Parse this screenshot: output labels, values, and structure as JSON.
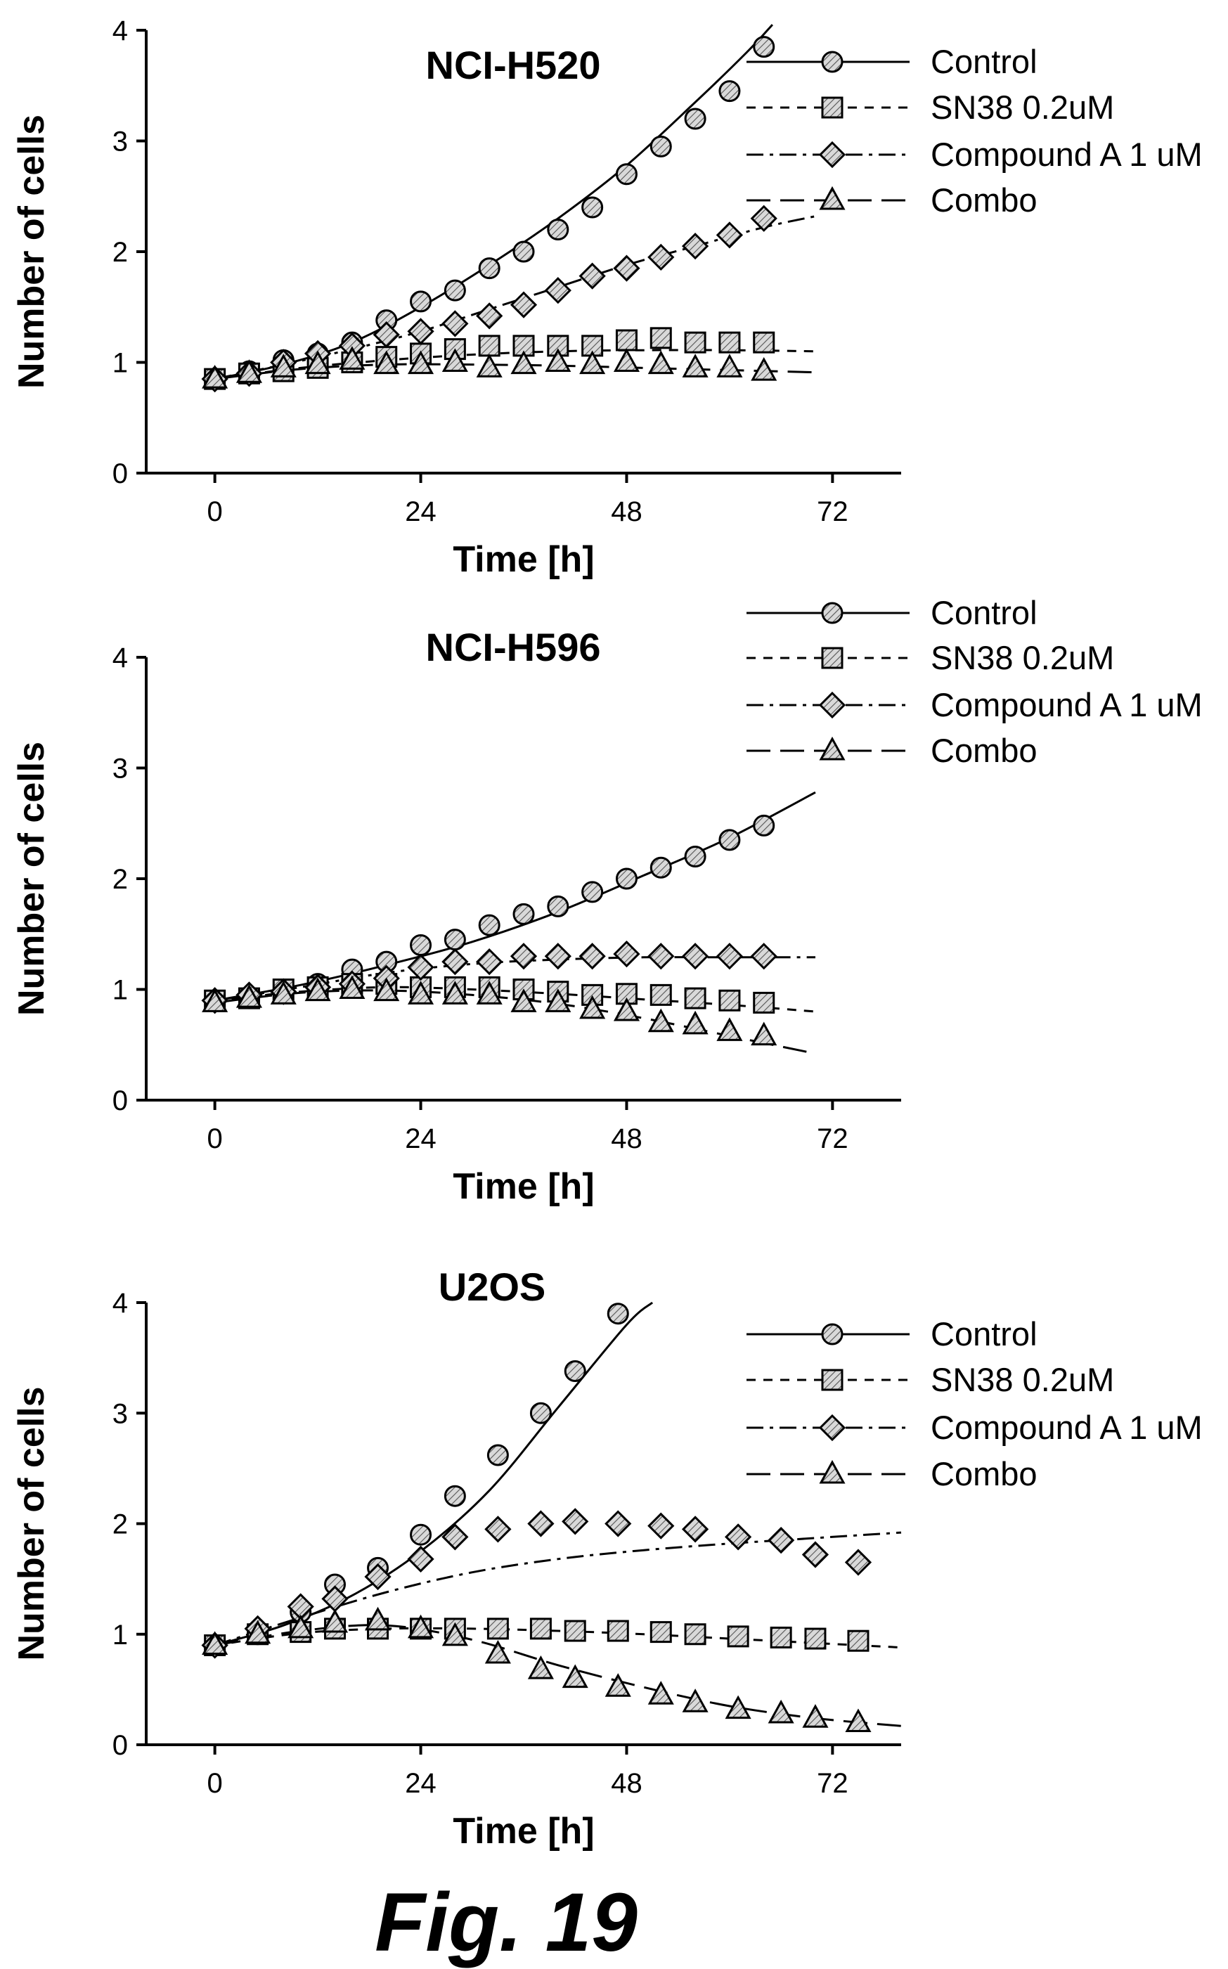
{
  "figure": {
    "caption": "Fig. 19"
  },
  "legend_entries": [
    "Control",
    "SN38 0.2uM",
    "Compound A 1 uM",
    "Combo"
  ],
  "chart_data": [
    {
      "type": "line",
      "title": "NCI-H520",
      "xlabel": "Time [h]",
      "ylabel": "Number of cells",
      "xlim": [
        -8,
        80
      ],
      "ylim": [
        0,
        4
      ],
      "xticks": [
        0,
        24,
        48,
        72
      ],
      "yticks": [
        0,
        1,
        2,
        3,
        4
      ],
      "grid": false,
      "legend": "top-right",
      "series": [
        {
          "name": "Control",
          "marker": "circle",
          "line": "solid",
          "x": [
            0,
            4,
            8,
            12,
            16,
            20,
            24,
            28,
            32,
            36,
            40,
            44,
            48,
            52,
            56,
            60,
            64
          ],
          "y": [
            0.85,
            0.92,
            1.02,
            1.08,
            1.18,
            1.38,
            1.55,
            1.65,
            1.85,
            2.0,
            2.2,
            2.4,
            2.7,
            2.95,
            3.2,
            3.45,
            3.85
          ],
          "fit_x": [
            0,
            8,
            16,
            24,
            32,
            40,
            48,
            56,
            62,
            65
          ],
          "fit_y": [
            0.85,
            0.98,
            1.18,
            1.5,
            1.88,
            2.3,
            2.78,
            3.35,
            3.8,
            4.05
          ]
        },
        {
          "name": "SN38 0.2uM",
          "marker": "square",
          "line": "dashed",
          "x": [
            0,
            4,
            8,
            12,
            16,
            20,
            24,
            28,
            32,
            36,
            40,
            44,
            48,
            52,
            56,
            60,
            64
          ],
          "y": [
            0.85,
            0.9,
            0.92,
            0.95,
            1.0,
            1.05,
            1.08,
            1.12,
            1.15,
            1.15,
            1.15,
            1.15,
            1.2,
            1.22,
            1.18,
            1.18,
            1.18
          ],
          "fit_x": [
            0,
            10,
            20,
            30,
            40,
            50,
            60,
            70
          ],
          "fit_y": [
            0.85,
            0.95,
            1.02,
            1.07,
            1.1,
            1.11,
            1.11,
            1.1
          ]
        },
        {
          "name": "Compound A 1 uM",
          "marker": "diamond",
          "line": "dashdot",
          "x": [
            0,
            4,
            8,
            12,
            16,
            20,
            24,
            28,
            32,
            36,
            40,
            44,
            48,
            52,
            56,
            60,
            64
          ],
          "y": [
            0.85,
            0.9,
            1.0,
            1.08,
            1.15,
            1.25,
            1.28,
            1.35,
            1.42,
            1.52,
            1.65,
            1.78,
            1.85,
            1.95,
            2.05,
            2.15,
            2.3
          ],
          "fit_x": [
            0,
            8,
            16,
            24,
            32,
            40,
            48,
            56,
            64,
            70
          ],
          "fit_y": [
            0.85,
            0.98,
            1.12,
            1.28,
            1.48,
            1.68,
            1.88,
            2.05,
            2.22,
            2.32
          ]
        },
        {
          "name": "Combo",
          "marker": "triangle",
          "line": "longdash",
          "x": [
            0,
            4,
            8,
            12,
            16,
            20,
            24,
            28,
            32,
            36,
            40,
            44,
            48,
            52,
            56,
            60,
            64
          ],
          "y": [
            0.85,
            0.9,
            0.95,
            0.98,
            1.02,
            0.98,
            0.98,
            1.0,
            0.95,
            0.98,
            1.0,
            0.98,
            1.0,
            0.98,
            0.95,
            0.95,
            0.92
          ],
          "fit_x": [
            0,
            10,
            20,
            30,
            40,
            50,
            60,
            70
          ],
          "fit_y": [
            0.85,
            0.94,
            0.98,
            0.98,
            0.97,
            0.95,
            0.93,
            0.91
          ]
        }
      ]
    },
    {
      "type": "line",
      "title": "NCI-H596",
      "xlabel": "Time [h]",
      "ylabel": "Number of cells",
      "xlim": [
        -8,
        80
      ],
      "ylim": [
        0,
        4
      ],
      "xticks": [
        0,
        24,
        48,
        72
      ],
      "yticks": [
        0,
        1,
        2,
        3,
        4
      ],
      "grid": false,
      "legend": "top-right",
      "series": [
        {
          "name": "Control",
          "marker": "circle",
          "line": "solid",
          "x": [
            0,
            4,
            8,
            12,
            16,
            20,
            24,
            28,
            32,
            36,
            40,
            44,
            48,
            52,
            56,
            60,
            64
          ],
          "y": [
            0.9,
            0.92,
            1.0,
            1.05,
            1.18,
            1.25,
            1.4,
            1.45,
            1.58,
            1.68,
            1.75,
            1.88,
            2.0,
            2.1,
            2.2,
            2.35,
            2.48
          ],
          "fit_x": [
            0,
            10,
            20,
            30,
            40,
            50,
            60,
            70
          ],
          "fit_y": [
            0.9,
            1.04,
            1.22,
            1.43,
            1.7,
            2.03,
            2.37,
            2.78
          ]
        },
        {
          "name": "SN38 0.2uM",
          "marker": "square",
          "line": "dashed",
          "x": [
            0,
            4,
            8,
            12,
            16,
            20,
            24,
            28,
            32,
            36,
            40,
            44,
            48,
            52,
            56,
            60,
            64
          ],
          "y": [
            0.9,
            0.92,
            1.0,
            1.02,
            1.05,
            1.05,
            1.02,
            1.02,
            1.02,
            1.0,
            0.98,
            0.95,
            0.96,
            0.95,
            0.92,
            0.9,
            0.88
          ],
          "fit_x": [
            0,
            10,
            20,
            30,
            40,
            50,
            60,
            70
          ],
          "fit_y": [
            0.9,
            0.98,
            1.02,
            1.0,
            0.96,
            0.91,
            0.86,
            0.8
          ]
        },
        {
          "name": "Compound A 1 uM",
          "marker": "diamond",
          "line": "dashdot",
          "x": [
            0,
            4,
            8,
            12,
            16,
            20,
            24,
            28,
            32,
            36,
            40,
            44,
            48,
            52,
            56,
            60,
            64
          ],
          "y": [
            0.9,
            0.95,
            0.98,
            1.02,
            1.05,
            1.1,
            1.2,
            1.25,
            1.25,
            1.3,
            1.3,
            1.3,
            1.32,
            1.3,
            1.3,
            1.3,
            1.3
          ],
          "fit_x": [
            0,
            10,
            20,
            30,
            40,
            50,
            60,
            70
          ],
          "fit_y": [
            0.9,
            1.02,
            1.15,
            1.23,
            1.27,
            1.29,
            1.29,
            1.29
          ]
        },
        {
          "name": "Combo",
          "marker": "triangle",
          "line": "longdash",
          "x": [
            0,
            4,
            8,
            12,
            16,
            20,
            24,
            28,
            32,
            36,
            40,
            44,
            48,
            52,
            56,
            60,
            64
          ],
          "y": [
            0.88,
            0.92,
            0.95,
            0.98,
            1.0,
            0.98,
            0.95,
            0.95,
            0.95,
            0.88,
            0.88,
            0.82,
            0.8,
            0.7,
            0.68,
            0.62,
            0.58
          ],
          "fit_x": [
            0,
            10,
            20,
            30,
            40,
            50,
            60,
            70
          ],
          "fit_y": [
            0.88,
            0.97,
            0.99,
            0.95,
            0.87,
            0.74,
            0.58,
            0.42
          ]
        }
      ]
    },
    {
      "type": "line",
      "title": "U2OS",
      "xlabel": "Time [h]",
      "ylabel": "Number of cells",
      "xlim": [
        -8,
        80
      ],
      "ylim": [
        0,
        4
      ],
      "xticks": [
        0,
        24,
        48,
        72
      ],
      "yticks": [
        0,
        1,
        2,
        3,
        4
      ],
      "grid": false,
      "legend": "top-right",
      "series": [
        {
          "name": "Control",
          "marker": "circle",
          "line": "solid",
          "x": [
            0,
            5,
            10,
            14,
            19,
            24,
            28,
            33,
            38,
            42,
            47
          ],
          "y": [
            0.9,
            1.0,
            1.2,
            1.45,
            1.6,
            1.9,
            2.25,
            2.62,
            3.0,
            3.38,
            3.9
          ],
          "fit_x": [
            0,
            8,
            16,
            24,
            32,
            40,
            48,
            51
          ],
          "fit_y": [
            0.9,
            1.08,
            1.35,
            1.75,
            2.3,
            3.05,
            3.8,
            4.0
          ]
        },
        {
          "name": "SN38 0.2uM",
          "marker": "square",
          "line": "dashed",
          "x": [
            0,
            5,
            10,
            14,
            19,
            24,
            28,
            33,
            38,
            42,
            47,
            52,
            56,
            61,
            66,
            70,
            75
          ],
          "y": [
            0.9,
            1.0,
            1.02,
            1.05,
            1.05,
            1.05,
            1.05,
            1.05,
            1.05,
            1.03,
            1.03,
            1.02,
            1.0,
            0.98,
            0.97,
            0.96,
            0.94
          ],
          "fit_x": [
            0,
            10,
            20,
            30,
            40,
            50,
            60,
            70,
            80
          ],
          "fit_y": [
            0.9,
            1.01,
            1.05,
            1.05,
            1.03,
            1.0,
            0.96,
            0.92,
            0.88
          ]
        },
        {
          "name": "Compound A 1 uM",
          "marker": "diamond",
          "line": "dashdot",
          "x": [
            0,
            5,
            10,
            14,
            19,
            24,
            28,
            33,
            38,
            42,
            47,
            52,
            56,
            61,
            66,
            70,
            75
          ],
          "y": [
            0.9,
            1.05,
            1.25,
            1.32,
            1.52,
            1.68,
            1.88,
            1.95,
            2.0,
            2.02,
            2.0,
            1.98,
            1.95,
            1.88,
            1.85,
            1.72,
            1.65
          ],
          "fit_x": [
            0,
            10,
            20,
            30,
            40,
            50,
            60,
            70,
            80
          ],
          "fit_y": [
            0.9,
            1.15,
            1.38,
            1.56,
            1.68,
            1.76,
            1.82,
            1.87,
            1.92
          ]
        },
        {
          "name": "Combo",
          "marker": "triangle",
          "line": "longdash",
          "x": [
            0,
            5,
            10,
            14,
            19,
            24,
            28,
            33,
            38,
            42,
            47,
            52,
            56,
            61,
            66,
            70,
            75
          ],
          "y": [
            0.9,
            1.0,
            1.05,
            1.1,
            1.12,
            1.05,
            0.98,
            0.82,
            0.68,
            0.6,
            0.52,
            0.45,
            0.38,
            0.32,
            0.28,
            0.24,
            0.2
          ],
          "fit_x": [
            0,
            10,
            20,
            30,
            40,
            50,
            60,
            70,
            80
          ],
          "fit_y": [
            0.9,
            1.03,
            1.08,
            0.95,
            0.72,
            0.52,
            0.35,
            0.24,
            0.17
          ]
        }
      ]
    }
  ]
}
